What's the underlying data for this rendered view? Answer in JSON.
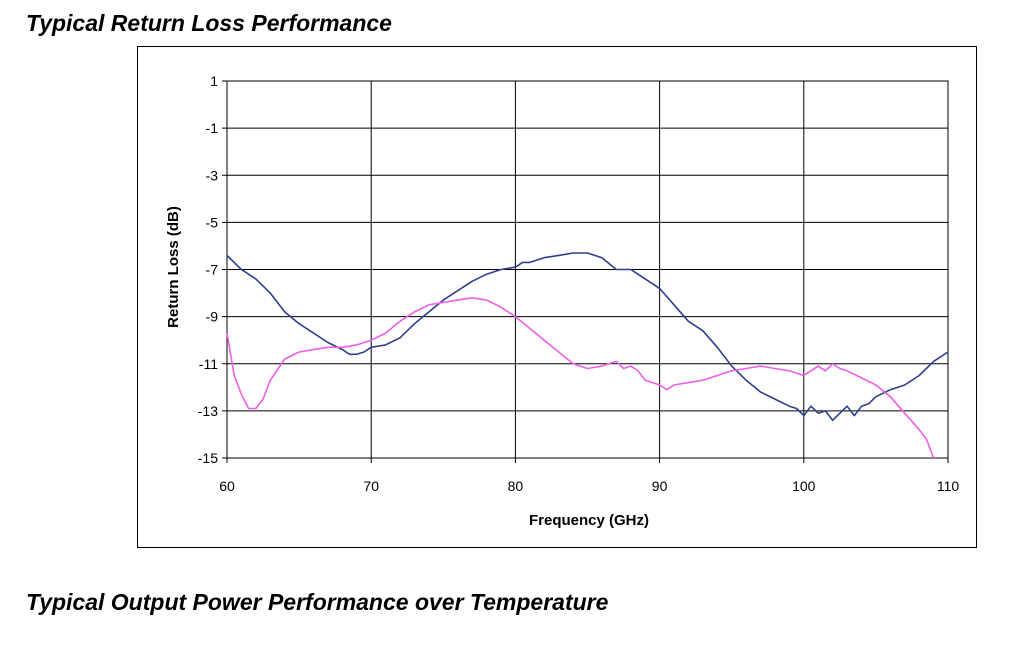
{
  "page": {
    "heading_1": "Typical Return Loss Performance",
    "heading_2": "Typical Output Power Performance over Temperature"
  },
  "colors": {
    "series_navy": "#2f3f8f",
    "series_magenta": "#ee5ee8",
    "grid": "#000000"
  },
  "chart_data": {
    "type": "line",
    "title": "",
    "xlabel": "Frequency (GHz)",
    "ylabel": "Return Loss (dB)",
    "xlim": [
      60,
      110
    ],
    "ylim": [
      -15,
      1
    ],
    "xticks": [
      60,
      70,
      80,
      90,
      100,
      110
    ],
    "yticks": [
      1,
      -1,
      -3,
      -5,
      -7,
      -9,
      -11,
      -13,
      -15
    ],
    "grid": true,
    "legend": "none",
    "series": [
      {
        "color": "#2f3f8f",
        "x": [
          60,
          61,
          62,
          63,
          64,
          65,
          66,
          67,
          68,
          68.5,
          69,
          69.5,
          70,
          71,
          72,
          73,
          74,
          75,
          76,
          77,
          78,
          79,
          80,
          80.5,
          81,
          82,
          83,
          84,
          85,
          86,
          87,
          88,
          89,
          90,
          91,
          92,
          93,
          94,
          95,
          96,
          97,
          98,
          99,
          99.5,
          100,
          100.5,
          101,
          101.5,
          102,
          102.5,
          103,
          103.5,
          104,
          104.5,
          105,
          106,
          107,
          108,
          109,
          110
        ],
        "y": [
          -6.4,
          -7.0,
          -7.4,
          -8.0,
          -8.8,
          -9.3,
          -9.7,
          -10.1,
          -10.4,
          -10.6,
          -10.6,
          -10.5,
          -10.3,
          -10.2,
          -9.9,
          -9.3,
          -8.8,
          -8.3,
          -7.9,
          -7.5,
          -7.2,
          -7.0,
          -6.9,
          -6.7,
          -6.7,
          -6.5,
          -6.4,
          -6.3,
          -6.3,
          -6.5,
          -7.0,
          -7.0,
          -7.4,
          -7.8,
          -8.5,
          -9.2,
          -9.6,
          -10.3,
          -11.1,
          -11.7,
          -12.2,
          -12.5,
          -12.8,
          -12.9,
          -13.2,
          -12.8,
          -13.1,
          -13.0,
          -13.4,
          -13.1,
          -12.8,
          -13.2,
          -12.8,
          -12.7,
          -12.4,
          -12.1,
          -11.9,
          -11.5,
          -10.9,
          -10.5
        ]
      },
      {
        "color": "#ee5ee8",
        "x": [
          60,
          60.5,
          61,
          61.5,
          62,
          62.5,
          63,
          64,
          65,
          66,
          67,
          68,
          69,
          70,
          71,
          72,
          73,
          74,
          75,
          76,
          77,
          78,
          79,
          80,
          81,
          82,
          83,
          84,
          85,
          86,
          87,
          87.5,
          88,
          88.5,
          89,
          90,
          90.5,
          91,
          92,
          93,
          94,
          95,
          96,
          97,
          98,
          99,
          100,
          100.5,
          101,
          101.5,
          102,
          102.5,
          103,
          104,
          105,
          106,
          107,
          108,
          108.5,
          109
        ],
        "y": [
          -9.7,
          -11.5,
          -12.3,
          -12.9,
          -12.9,
          -12.5,
          -11.7,
          -10.8,
          -10.5,
          -10.4,
          -10.3,
          -10.3,
          -10.2,
          -10.0,
          -9.7,
          -9.2,
          -8.8,
          -8.5,
          -8.4,
          -8.3,
          -8.2,
          -8.3,
          -8.6,
          -9.0,
          -9.5,
          -10.0,
          -10.5,
          -11.0,
          -11.2,
          -11.1,
          -10.9,
          -11.2,
          -11.1,
          -11.3,
          -11.7,
          -11.9,
          -12.1,
          -11.9,
          -11.8,
          -11.7,
          -11.5,
          -11.3,
          -11.2,
          -11.1,
          -11.2,
          -11.3,
          -11.5,
          -11.3,
          -11.1,
          -11.3,
          -11.0,
          -11.2,
          -11.3,
          -11.6,
          -11.9,
          -12.4,
          -13.1,
          -13.8,
          -14.2,
          -15.0
        ]
      }
    ]
  }
}
